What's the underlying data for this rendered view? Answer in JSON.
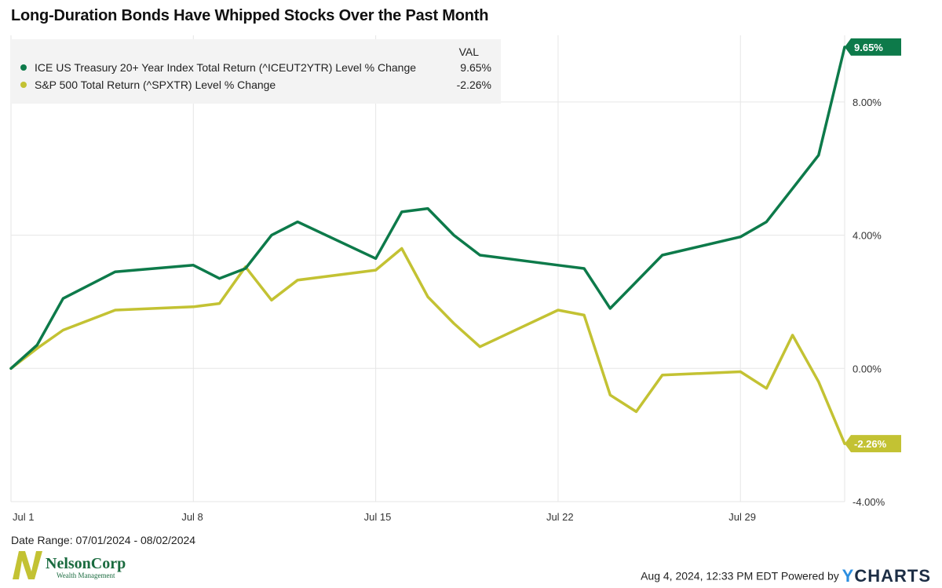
{
  "title": "Long-Duration Bonds Have Whipped Stocks Over the Past Month",
  "legend": {
    "header": "VAL",
    "items": [
      {
        "label": "ICE US Treasury 20+ Year Index Total Return (^ICEUT2YTR) Level % Change",
        "value": "9.65%"
      },
      {
        "label": "S&P 500 Total Return (^SPXTR) Level % Change",
        "value": "-2.26%"
      }
    ]
  },
  "colors": {
    "bond": "#0d7a4a",
    "spx": "#c3c233",
    "grid": "#e6e6e6"
  },
  "footer": {
    "date_range": "Date Range: 07/01/2024 - 08/02/2024",
    "timestamp": "Aug 4, 2024, 12:33 PM EDT Powered by",
    "brand_y": "Y",
    "brand_rest": "CHARTS"
  },
  "logo": {
    "name": "NelsonCorp",
    "tagline": "Wealth Management"
  },
  "chart_data": {
    "type": "line",
    "title": "Long-Duration Bonds Have Whipped Stocks Over the Past Month",
    "ylim": [
      -4,
      10
    ],
    "xlim": [
      "2024-07-01",
      "2024-08-02"
    ],
    "yticks": [
      -4,
      0,
      4,
      8
    ],
    "ytick_labels": [
      "-4.00%",
      "0.00%",
      "4.00%",
      "8.00%"
    ],
    "xticks": [
      "2024-07-01",
      "2024-07-08",
      "2024-07-15",
      "2024-07-22",
      "2024-07-29"
    ],
    "xtick_labels": [
      "Jul 1",
      "Jul 8",
      "Jul 15",
      "Jul 22",
      "Jul 29"
    ],
    "grid": true,
    "legend_position": "top-left",
    "series": [
      {
        "name": "ICE US Treasury 20+ Year Index Total Return (^ICEUT2YTR) Level % Change",
        "end_label": "9.65%",
        "points": [
          [
            "2024-07-01",
            0.0
          ],
          [
            "2024-07-02",
            0.7
          ],
          [
            "2024-07-03",
            2.1
          ],
          [
            "2024-07-05",
            2.9
          ],
          [
            "2024-07-08",
            3.1
          ],
          [
            "2024-07-09",
            2.7
          ],
          [
            "2024-07-10",
            3.0
          ],
          [
            "2024-07-11",
            4.0
          ],
          [
            "2024-07-12",
            4.4
          ],
          [
            "2024-07-15",
            3.3
          ],
          [
            "2024-07-16",
            4.7
          ],
          [
            "2024-07-17",
            4.8
          ],
          [
            "2024-07-18",
            4.0
          ],
          [
            "2024-07-19",
            3.4
          ],
          [
            "2024-07-22",
            3.1
          ],
          [
            "2024-07-23",
            3.0
          ],
          [
            "2024-07-24",
            1.8
          ],
          [
            "2024-07-25",
            2.6
          ],
          [
            "2024-07-26",
            3.4
          ],
          [
            "2024-07-29",
            3.95
          ],
          [
            "2024-07-30",
            4.4
          ],
          [
            "2024-07-31",
            5.4
          ],
          [
            "2024-08-01",
            6.4
          ],
          [
            "2024-08-02",
            9.65
          ]
        ]
      },
      {
        "name": "S&P 500 Total Return (^SPXTR) Level % Change",
        "end_label": "-2.26%",
        "points": [
          [
            "2024-07-01",
            0.0
          ],
          [
            "2024-07-02",
            0.6
          ],
          [
            "2024-07-03",
            1.15
          ],
          [
            "2024-07-05",
            1.75
          ],
          [
            "2024-07-08",
            1.85
          ],
          [
            "2024-07-09",
            1.95
          ],
          [
            "2024-07-10",
            3.05
          ],
          [
            "2024-07-11",
            2.05
          ],
          [
            "2024-07-12",
            2.65
          ],
          [
            "2024-07-15",
            2.95
          ],
          [
            "2024-07-16",
            3.6
          ],
          [
            "2024-07-17",
            2.15
          ],
          [
            "2024-07-18",
            1.35
          ],
          [
            "2024-07-19",
            0.65
          ],
          [
            "2024-07-22",
            1.75
          ],
          [
            "2024-07-23",
            1.6
          ],
          [
            "2024-07-24",
            -0.8
          ],
          [
            "2024-07-25",
            -1.3
          ],
          [
            "2024-07-26",
            -0.2
          ],
          [
            "2024-07-29",
            -0.1
          ],
          [
            "2024-07-30",
            -0.6
          ],
          [
            "2024-07-31",
            1.0
          ],
          [
            "2024-08-01",
            -0.4
          ],
          [
            "2024-08-02",
            -2.26
          ]
        ]
      }
    ]
  }
}
